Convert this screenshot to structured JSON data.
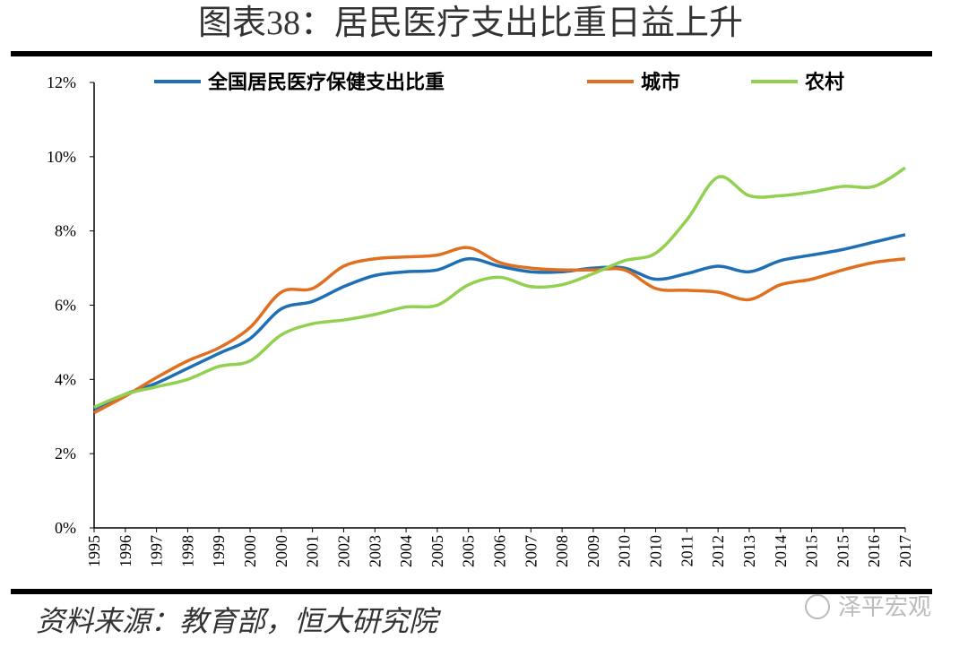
{
  "chart_data": {
    "type": "line",
    "title": "图表38：居民医疗支出比重日益上升",
    "categories": [
      "1995",
      "1996",
      "1997",
      "1998",
      "1999",
      "2000",
      "2000",
      "2001",
      "2002",
      "2003",
      "2004",
      "2005",
      "2005",
      "2006",
      "2007",
      "2008",
      "2009",
      "2010",
      "2010",
      "2011",
      "2012",
      "2013",
      "2014",
      "2015",
      "2015",
      "2016",
      "2017"
    ],
    "series": [
      {
        "name": "全国居民医疗保健支出比重",
        "color": "#1f6fb5",
        "values": [
          3.2,
          3.6,
          3.9,
          4.3,
          4.7,
          5.1,
          5.9,
          6.1,
          6.5,
          6.8,
          6.9,
          6.95,
          7.25,
          7.05,
          6.9,
          6.9,
          7.0,
          7.0,
          6.7,
          6.85,
          7.05,
          6.9,
          7.2,
          7.35,
          7.5,
          7.7,
          7.9
        ]
      },
      {
        "name": "城市",
        "color": "#e07020",
        "values": [
          3.1,
          3.55,
          4.05,
          4.5,
          4.85,
          5.4,
          6.35,
          6.45,
          7.05,
          7.25,
          7.3,
          7.35,
          7.55,
          7.15,
          7.0,
          6.95,
          6.95,
          6.95,
          6.45,
          6.4,
          6.35,
          6.15,
          6.55,
          6.7,
          6.95,
          7.15,
          7.25
        ]
      },
      {
        "name": "农村",
        "color": "#92d050",
        "values": [
          3.25,
          3.6,
          3.8,
          4.0,
          4.35,
          4.5,
          5.2,
          5.5,
          5.6,
          5.75,
          5.95,
          6.0,
          6.55,
          6.75,
          6.5,
          6.55,
          6.85,
          7.2,
          7.4,
          8.3,
          9.45,
          8.95,
          8.95,
          9.05,
          9.2,
          9.2,
          9.7
        ]
      }
    ],
    "ylim": [
      0,
      12
    ],
    "yticks": [
      {
        "value": 0,
        "label": "0%"
      },
      {
        "value": 2,
        "label": "2%"
      },
      {
        "value": 4,
        "label": "4%"
      },
      {
        "value": 6,
        "label": "6%"
      },
      {
        "value": 8,
        "label": "8%"
      },
      {
        "value": 10,
        "label": "10%"
      },
      {
        "value": 12,
        "label": "12%"
      }
    ],
    "source": "资料来源：教育部，恒大研究院",
    "watermark": "泽平宏观"
  }
}
